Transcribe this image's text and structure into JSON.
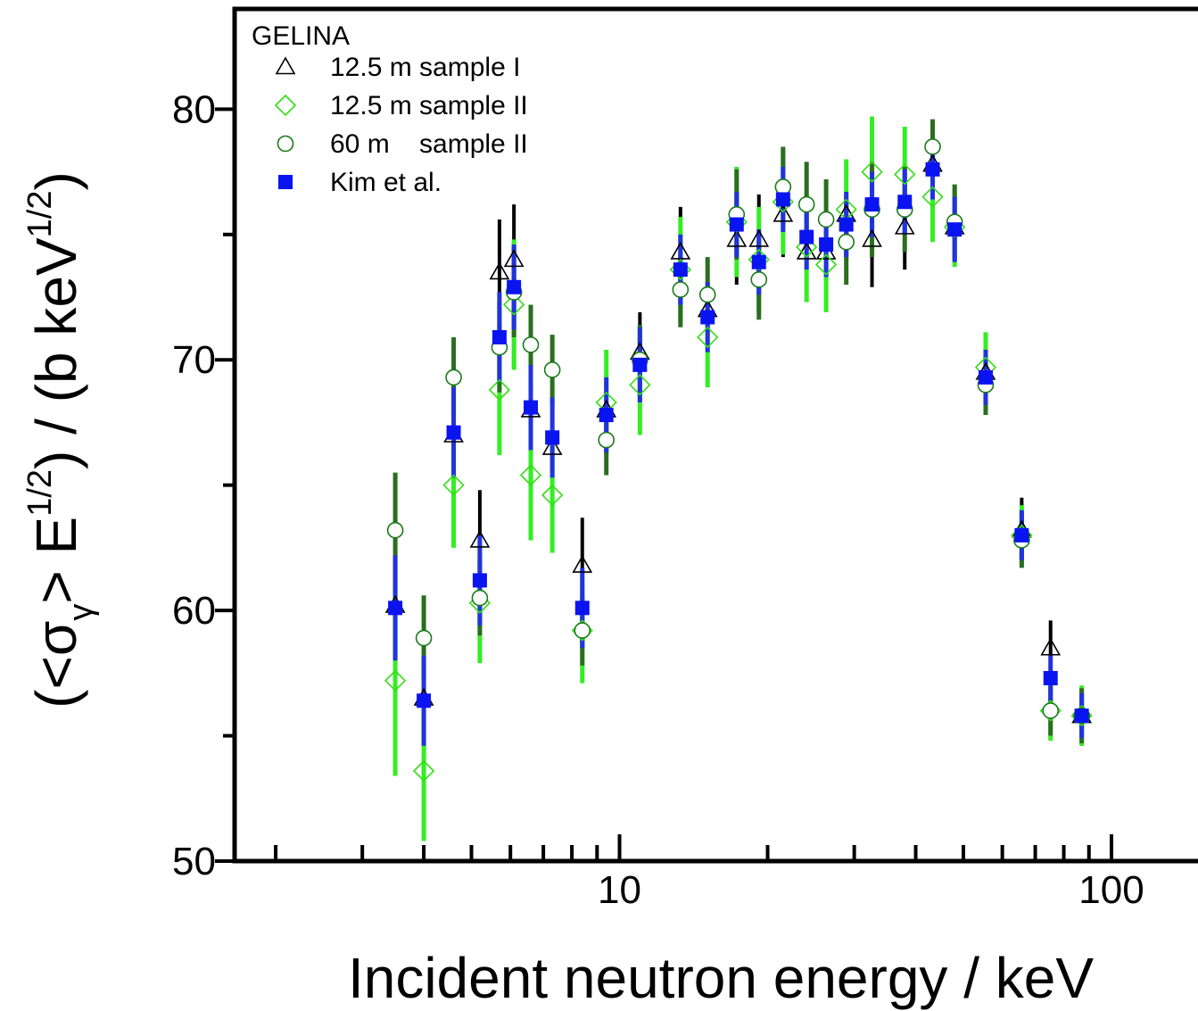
{
  "chart_data": {
    "type": "scatter",
    "xscale": "log",
    "xlim": [
      1.65,
      163
    ],
    "ylim": [
      50,
      84
    ],
    "xticks": [
      10,
      100
    ],
    "xtick_labels": [
      "10",
      "100"
    ],
    "yticks": [
      50,
      60,
      70,
      80
    ],
    "ytick_labels": [
      "50",
      "60",
      "70",
      "80"
    ],
    "xlabel": "Incident neutron energy / keV",
    "ylabel_parts": [
      "(<σ",
      "γ",
      "> E",
      "1/2",
      ") / (b keV",
      "1/2",
      ")"
    ],
    "legend": {
      "title": "GELINA",
      "placement": "top-left"
    },
    "colors": {
      "series1": "#000000",
      "series2": "#33dd11",
      "series3": "#1a7a1a",
      "series4": "#0a14f0",
      "err1": "#000000",
      "err2": "#33ee22",
      "err3": "#2a6e1f",
      "err4": "#2233dd"
    },
    "series": [
      {
        "name": "12.5 m sample I",
        "marker": "triangle-open",
        "x": [
          3.5,
          4.0,
          4.6,
          5.2,
          5.7,
          6.1,
          6.6,
          7.3,
          8.4,
          9.4,
          11.0,
          13.3,
          15.1,
          17.3,
          19.2,
          21.5,
          24.0,
          26.3,
          28.9,
          32.6,
          38.0,
          43.3,
          48.0,
          55.5,
          65.7,
          75.2,
          87.0
        ],
        "y": [
          60.2,
          56.5,
          67.0,
          62.8,
          73.5,
          74.0,
          68.0,
          66.5,
          61.8,
          68.0,
          70.3,
          74.3,
          72.0,
          74.8,
          74.8,
          75.8,
          74.3,
          74.3,
          75.8,
          74.8,
          75.3,
          77.8,
          75.3,
          69.5,
          63.2,
          58.5,
          55.8
        ],
        "err": [
          1.8,
          1.5,
          1.6,
          2.0,
          2.1,
          2.2,
          1.8,
          1.5,
          1.9,
          1.6,
          1.6,
          1.8,
          1.8,
          1.8,
          1.8,
          1.7,
          1.9,
          1.9,
          1.9,
          1.9,
          1.7,
          1.7,
          1.5,
          1.2,
          1.3,
          1.1,
          1.2
        ]
      },
      {
        "name": "12.5 m sample II",
        "marker": "diamond-open",
        "x": [
          3.5,
          4.0,
          4.6,
          5.2,
          5.7,
          6.1,
          6.6,
          7.3,
          8.4,
          9.4,
          11.0,
          13.3,
          15.1,
          17.3,
          19.2,
          21.5,
          24.0,
          26.3,
          28.9,
          32.6,
          38.0,
          43.3,
          48.0,
          55.5,
          65.7,
          75.2,
          87.0
        ],
        "y": [
          57.2,
          53.6,
          65.0,
          60.3,
          68.8,
          72.2,
          65.4,
          64.6,
          59.2,
          68.3,
          69.0,
          73.6,
          70.9,
          75.5,
          74.0,
          76.3,
          74.5,
          73.8,
          76.0,
          77.5,
          77.4,
          76.5,
          75.3,
          69.7,
          63.0,
          56.0,
          55.8
        ],
        "err": [
          3.8,
          2.8,
          2.5,
          2.4,
          2.6,
          2.6,
          2.6,
          2.3,
          2.1,
          2.1,
          2.0,
          2.1,
          2.0,
          2.2,
          2.1,
          2.1,
          2.2,
          1.9,
          2.0,
          2.2,
          1.9,
          1.8,
          1.6,
          1.4,
          1.2,
          1.2,
          1.2
        ]
      },
      {
        "name": "60 m    sample II",
        "marker": "circle-open",
        "x": [
          3.5,
          4.0,
          4.6,
          5.2,
          5.7,
          6.1,
          6.6,
          7.3,
          8.4,
          9.4,
          11.0,
          13.3,
          15.1,
          17.3,
          19.2,
          21.5,
          24.0,
          26.3,
          28.9,
          32.6,
          38.0,
          43.3,
          48.0,
          55.5,
          65.7,
          75.2,
          87.0
        ],
        "y": [
          63.2,
          58.9,
          69.3,
          60.5,
          70.5,
          72.7,
          70.6,
          69.6,
          59.2,
          66.8,
          70.0,
          72.8,
          72.6,
          75.8,
          73.2,
          76.9,
          76.2,
          75.6,
          74.7,
          76.0,
          76.0,
          78.5,
          75.5,
          69.0,
          62.8,
          56.0,
          55.8
        ],
        "err": [
          2.3,
          1.7,
          1.6,
          1.5,
          1.8,
          1.8,
          1.6,
          1.4,
          1.4,
          1.4,
          1.4,
          1.5,
          1.5,
          1.8,
          1.6,
          1.6,
          1.7,
          1.6,
          1.7,
          1.9,
          1.7,
          1.1,
          1.5,
          1.2,
          1.1,
          1.0,
          1.1
        ]
      },
      {
        "name": "Kim et al.",
        "marker": "square-filled",
        "x": [
          3.5,
          4.0,
          4.6,
          5.2,
          5.7,
          6.1,
          6.6,
          7.3,
          8.4,
          9.4,
          11.0,
          13.3,
          15.1,
          17.3,
          19.2,
          21.5,
          24.0,
          26.3,
          28.9,
          32.6,
          38.0,
          43.3,
          48.0,
          55.5,
          65.7,
          75.2,
          87.0
        ],
        "y": [
          60.1,
          56.4,
          67.1,
          61.2,
          70.9,
          72.9,
          68.1,
          66.9,
          60.1,
          67.8,
          69.8,
          73.6,
          71.7,
          75.4,
          73.9,
          76.4,
          74.9,
          74.6,
          75.4,
          76.2,
          76.3,
          77.6,
          75.2,
          69.3,
          63.0,
          57.3,
          55.8
        ],
        "err": [
          2.1,
          1.8,
          1.8,
          1.8,
          1.8,
          1.7,
          1.7,
          1.6,
          1.6,
          1.5,
          1.5,
          1.4,
          1.4,
          1.3,
          1.3,
          1.3,
          1.3,
          1.3,
          1.3,
          1.3,
          1.3,
          1.2,
          1.3,
          1.1,
          1.0,
          0.9,
          0.9
        ]
      }
    ]
  }
}
